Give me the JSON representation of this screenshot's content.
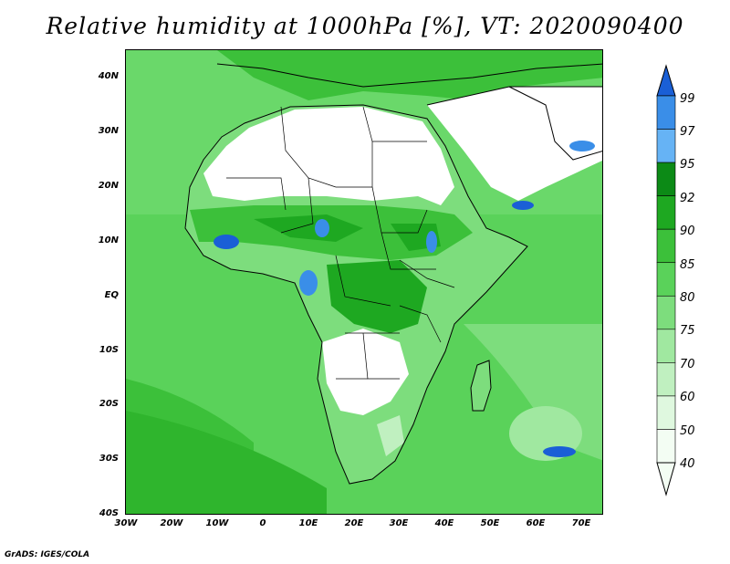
{
  "title": "Relative humidity at 1000hPa [%], VT: 2020090400",
  "lat_labels": [
    "40N",
    "30N",
    "20N",
    "10N",
    "EQ",
    "10S",
    "20S",
    "30S",
    "40S"
  ],
  "lon_labels": [
    "30W",
    "20W",
    "10W",
    "0",
    "10E",
    "20E",
    "30E",
    "40E",
    "50E",
    "60E",
    "70E"
  ],
  "colorbar": {
    "levels": [
      "99",
      "97",
      "95",
      "92",
      "90",
      "85",
      "80",
      "75",
      "70",
      "60",
      "50",
      "40"
    ],
    "colors": [
      "#1a5fd6",
      "#3a8ee8",
      "#66b3f5",
      "#0c8a16",
      "#1ea821",
      "#3cc03a",
      "#5ad25a",
      "#7ddd7d",
      "#a0e8a0",
      "#c0f0c0",
      "#dff8df",
      "#f3fdf3"
    ]
  },
  "footer": "GrADS: IGES/COLA"
}
